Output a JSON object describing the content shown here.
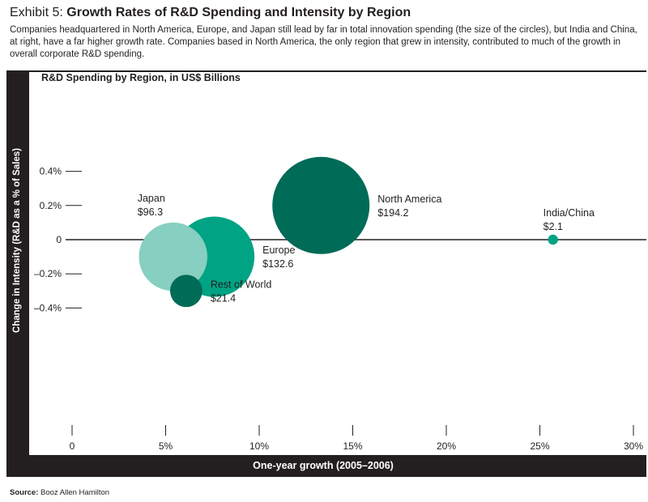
{
  "header": {
    "exhibit_label": "Exhibit 5:",
    "title": "Growth Rates of R&D Spending and Intensity by Region",
    "description": "Companies headquartered in North America, Europe, and Japan still lead by far in total innovation spending (the size of the circles), but India and China, at right, have a far higher growth rate. Companies based in North America, the only region that grew in intensity, contributed to much of the growth in overall corporate R&D spending."
  },
  "footer": {
    "source_label": "Source:",
    "source_text": "Booz Allen Hamilton"
  },
  "chart_data": {
    "type": "scatter",
    "subtitle": "R&D Spending by Region, in US$ Billions",
    "xlabel": "One-year growth (2005–2006)",
    "ylabel": "Change in Intensity (R&D as a % of Sales)",
    "xlim": [
      0,
      30
    ],
    "ylim": [
      -0.4,
      0.4
    ],
    "x_ticks": [
      {
        "value": 0,
        "label": "0"
      },
      {
        "value": 5,
        "label": "5%"
      },
      {
        "value": 10,
        "label": "10%"
      },
      {
        "value": 15,
        "label": "15%"
      },
      {
        "value": 20,
        "label": "20%"
      },
      {
        "value": 25,
        "label": "25%"
      },
      {
        "value": 30,
        "label": "30%"
      }
    ],
    "y_ticks": [
      {
        "value": 0.4,
        "label": "0.4%"
      },
      {
        "value": 0.2,
        "label": "0.2%"
      },
      {
        "value": 0,
        "label": "0"
      },
      {
        "value": -0.2,
        "label": "–0.2%"
      },
      {
        "value": -0.4,
        "label": "–0.4%"
      }
    ],
    "points": [
      {
        "id": "north-america",
        "name": "North America",
        "value_label": "$194.2",
        "x": 13.3,
        "y": 0.2,
        "size": 194.2,
        "color": "#006b57",
        "label_pos": "right"
      },
      {
        "id": "europe",
        "name": "Europe",
        "value_label": "$132.6",
        "x": 7.6,
        "y": -0.1,
        "size": 132.6,
        "color": "#00a383",
        "label_pos": "right"
      },
      {
        "id": "japan",
        "name": "Japan",
        "value_label": "$96.3",
        "x": 5.4,
        "y": -0.1,
        "size": 96.3,
        "color": "#87cfc0",
        "label_pos": "above"
      },
      {
        "id": "rest-of-world",
        "name": "Rest of World",
        "value_label": "$21.4",
        "x": 6.1,
        "y": -0.3,
        "size": 21.4,
        "color": "#006b57",
        "label_pos": "right"
      },
      {
        "id": "india-china",
        "name": "India/China",
        "value_label": "$2.1",
        "x": 25.7,
        "y": 0.0,
        "size": 2.1,
        "color": "#00a383",
        "label_pos": "above"
      }
    ],
    "grid": false
  }
}
